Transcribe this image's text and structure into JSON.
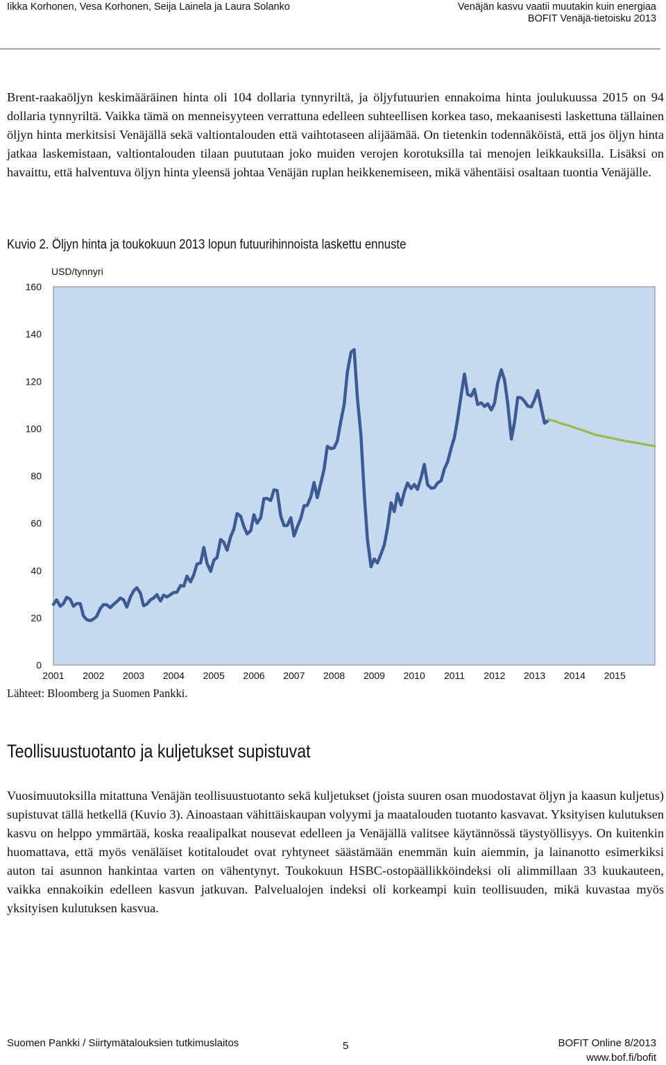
{
  "header": {
    "authors": "Iikka Korhonen, Vesa Korhonen, Seija Lainela ja Laura Solanko",
    "report_title": "Venäjän kasvu vaatii muutakin kuin energiaa",
    "series": "BOFIT Venäjä-tietoisku 2013"
  },
  "paragraphs": {
    "intro": "Brent-raakaöljyn keskimääräinen hinta oli 104 dollaria tynnyriltä, ja öljyfutuurien ennakoima hinta joulukuussa 2015 on 94 dollaria tynnyriltä. Vaikka tämä on menneisyyteen verrattuna edelleen suhteellisen korkea taso, mekaanisesti laskettuna tällainen öljyn hinta merkitsisi Venäjällä sekä valtiontalouden että vaihtotaseen alijäämää. On tietenkin todennäköistä, että jos öljyn hinta jatkaa laskemistaan, valtiontalouden tilaan puututaan joko muiden verojen korotuksilla tai menojen leikkauksilla. Lisäksi on havaittu, että halventuva öljyn hinta yleensä johtaa Venäjän ruplan heikkenemiseen, mikä vähentäisi osaltaan tuontia Venäjälle.",
    "industry": "Vuosimuutoksilla mitattuna Venäjän teollisuustuotanto sekä kuljetukset (joista suuren osan muodostavat öljyn ja kaasun kuljetus) supistuvat tällä hetkellä (Kuvio 3). Ainoastaan vähittäiskaupan volyymi ja maatalouden tuotanto kasvavat. Yksityisen kulutuksen kasvu on helppo ymmärtää, koska reaalipalkat nousevat edelleen ja Venäjällä valitsee käytännössä täystyöllisyys. On kuitenkin huomattava, että myös venäläiset kotitaloudet ovat ryhtyneet säästämään enemmän kuin aiemmin, ja lainanotto esimerkiksi auton tai asunnon hankintaa varten on vähentynyt. Toukokuun HSBC-ostopäällikköindeksi oli alimmillaan 33 kuukauteen, vaikka ennakoikin edelleen kasvun jatkuvan. Palvelualojen indeksi oli korkeampi kuin teollisuuden, mikä kuvastaa myös yksityisen kulutuksen kasvua."
  },
  "figure": {
    "title": "Kuvio 2. Öljyn hinta ja toukokuun 2013 lopun futuurihinnoista laskettu ennuste",
    "unit": "USD/tynnyri",
    "source": "Lähteet: Bloomberg ja Suomen Pankki."
  },
  "section": {
    "title": "Teollisuustuotanto ja kuljetukset supistuvat"
  },
  "footer": {
    "publisher": "Suomen Pankki / Siirtymätalouksien tutkimuslaitos",
    "page": "5",
    "edition": "BOFIT Online 8/2013",
    "url": "www.bof.fi/bofit"
  },
  "chart_data": {
    "type": "line",
    "title": "Kuvio 2. Öljyn hinta ja toukokuun 2013 lopun futuurihinnoista laskettu ennuste",
    "ylabel": "USD/tynnyri",
    "xlabel": "",
    "ylim": [
      0,
      160
    ],
    "yticks": [
      0,
      20,
      40,
      60,
      80,
      100,
      120,
      140,
      160
    ],
    "xlim": [
      2001.0,
      2016.0
    ],
    "xticks": [
      "2001",
      "2002",
      "2003",
      "2004",
      "2005",
      "2006",
      "2007",
      "2008",
      "2009",
      "2010",
      "2011",
      "2012",
      "2013",
      "2014",
      "2015"
    ],
    "background": "#c6d9f1",
    "series": [
      {
        "role": "actual",
        "color": "#3b5b92",
        "points": [
          [
            2001.0,
            25.7
          ],
          [
            2001.08,
            27.6
          ],
          [
            2001.17,
            24.9
          ],
          [
            2001.25,
            26.0
          ],
          [
            2001.33,
            28.7
          ],
          [
            2001.42,
            27.8
          ],
          [
            2001.5,
            24.9
          ],
          [
            2001.58,
            26.0
          ],
          [
            2001.67,
            26.0
          ],
          [
            2001.75,
            20.8
          ],
          [
            2001.83,
            19.2
          ],
          [
            2001.92,
            18.8
          ],
          [
            2002.0,
            19.5
          ],
          [
            2002.08,
            20.6
          ],
          [
            2002.17,
            24.0
          ],
          [
            2002.25,
            25.6
          ],
          [
            2002.33,
            25.5
          ],
          [
            2002.42,
            24.3
          ],
          [
            2002.5,
            25.7
          ],
          [
            2002.58,
            26.8
          ],
          [
            2002.67,
            28.4
          ],
          [
            2002.75,
            27.6
          ],
          [
            2002.83,
            24.5
          ],
          [
            2002.92,
            28.8
          ],
          [
            2003.0,
            31.4
          ],
          [
            2003.08,
            32.7
          ],
          [
            2003.17,
            30.4
          ],
          [
            2003.25,
            25.1
          ],
          [
            2003.33,
            25.8
          ],
          [
            2003.42,
            27.6
          ],
          [
            2003.5,
            28.4
          ],
          [
            2003.58,
            29.8
          ],
          [
            2003.67,
            27.1
          ],
          [
            2003.75,
            29.6
          ],
          [
            2003.83,
            28.8
          ],
          [
            2003.92,
            29.8
          ],
          [
            2004.0,
            30.7
          ],
          [
            2004.08,
            30.8
          ],
          [
            2004.17,
            33.6
          ],
          [
            2004.25,
            33.4
          ],
          [
            2004.33,
            37.6
          ],
          [
            2004.42,
            35.2
          ],
          [
            2004.5,
            38.2
          ],
          [
            2004.58,
            42.7
          ],
          [
            2004.67,
            43.2
          ],
          [
            2004.75,
            49.8
          ],
          [
            2004.83,
            43.1
          ],
          [
            2004.92,
            39.6
          ],
          [
            2005.0,
            44.3
          ],
          [
            2005.08,
            45.5
          ],
          [
            2005.17,
            53.1
          ],
          [
            2005.25,
            51.9
          ],
          [
            2005.33,
            48.6
          ],
          [
            2005.42,
            54.3
          ],
          [
            2005.5,
            57.5
          ],
          [
            2005.58,
            64.1
          ],
          [
            2005.67,
            62.9
          ],
          [
            2005.75,
            58.5
          ],
          [
            2005.83,
            55.5
          ],
          [
            2005.92,
            56.8
          ],
          [
            2006.0,
            63.6
          ],
          [
            2006.08,
            60.0
          ],
          [
            2006.17,
            62.3
          ],
          [
            2006.25,
            70.4
          ],
          [
            2006.33,
            70.5
          ],
          [
            2006.42,
            69.6
          ],
          [
            2006.5,
            74.1
          ],
          [
            2006.58,
            73.8
          ],
          [
            2006.67,
            63.0
          ],
          [
            2006.75,
            59.0
          ],
          [
            2006.83,
            59.0
          ],
          [
            2006.92,
            62.3
          ],
          [
            2007.0,
            54.6
          ],
          [
            2007.08,
            58.3
          ],
          [
            2007.17,
            62.1
          ],
          [
            2007.25,
            67.4
          ],
          [
            2007.33,
            67.5
          ],
          [
            2007.42,
            71.3
          ],
          [
            2007.5,
            77.2
          ],
          [
            2007.58,
            70.8
          ],
          [
            2007.67,
            77.1
          ],
          [
            2007.75,
            82.9
          ],
          [
            2007.83,
            92.5
          ],
          [
            2007.92,
            91.5
          ],
          [
            2008.0,
            91.9
          ],
          [
            2008.08,
            94.8
          ],
          [
            2008.17,
            103.3
          ],
          [
            2008.25,
            110.2
          ],
          [
            2008.33,
            123.9
          ],
          [
            2008.42,
            132.3
          ],
          [
            2008.5,
            133.4
          ],
          [
            2008.58,
            113.2
          ],
          [
            2008.67,
            97.1
          ],
          [
            2008.75,
            72.8
          ],
          [
            2008.83,
            53.2
          ],
          [
            2008.92,
            41.6
          ],
          [
            2009.0,
            44.9
          ],
          [
            2009.08,
            43.2
          ],
          [
            2009.17,
            47.0
          ],
          [
            2009.25,
            50.8
          ],
          [
            2009.33,
            57.9
          ],
          [
            2009.42,
            68.6
          ],
          [
            2009.5,
            64.9
          ],
          [
            2009.58,
            72.5
          ],
          [
            2009.67,
            67.7
          ],
          [
            2009.75,
            73.2
          ],
          [
            2009.83,
            77.0
          ],
          [
            2009.92,
            74.7
          ],
          [
            2010.0,
            76.4
          ],
          [
            2010.08,
            74.3
          ],
          [
            2010.17,
            79.3
          ],
          [
            2010.25,
            84.9
          ],
          [
            2010.33,
            76.3
          ],
          [
            2010.42,
            74.8
          ],
          [
            2010.5,
            75.0
          ],
          [
            2010.58,
            77.0
          ],
          [
            2010.67,
            78.0
          ],
          [
            2010.75,
            83.0
          ],
          [
            2010.83,
            85.9
          ],
          [
            2010.92,
            91.8
          ],
          [
            2011.0,
            96.3
          ],
          [
            2011.08,
            104.0
          ],
          [
            2011.17,
            114.4
          ],
          [
            2011.25,
            123.1
          ],
          [
            2011.33,
            114.5
          ],
          [
            2011.42,
            113.8
          ],
          [
            2011.5,
            116.6
          ],
          [
            2011.58,
            110.2
          ],
          [
            2011.67,
            110.9
          ],
          [
            2011.75,
            109.4
          ],
          [
            2011.83,
            110.5
          ],
          [
            2011.92,
            107.9
          ],
          [
            2012.0,
            110.7
          ],
          [
            2012.08,
            119.3
          ],
          [
            2012.17,
            124.9
          ],
          [
            2012.25,
            120.5
          ],
          [
            2012.33,
            110.5
          ],
          [
            2012.42,
            95.6
          ],
          [
            2012.5,
            102.8
          ],
          [
            2012.58,
            113.2
          ],
          [
            2012.67,
            113.0
          ],
          [
            2012.75,
            111.5
          ],
          [
            2012.83,
            109.5
          ],
          [
            2012.92,
            109.2
          ],
          [
            2013.0,
            112.3
          ],
          [
            2013.08,
            116.1
          ],
          [
            2013.17,
            108.5
          ],
          [
            2013.25,
            102.3
          ],
          [
            2013.33,
            103.3
          ]
        ]
      },
      {
        "role": "forecast",
        "color": "#9bbb59",
        "points": [
          [
            2013.33,
            103.9
          ],
          [
            2013.5,
            103.2
          ],
          [
            2013.67,
            102.1
          ],
          [
            2013.83,
            101.4
          ],
          [
            2014.0,
            100.4
          ],
          [
            2014.25,
            99.0
          ],
          [
            2014.5,
            97.5
          ],
          [
            2014.75,
            96.6
          ],
          [
            2015.0,
            95.7
          ],
          [
            2015.25,
            94.8
          ],
          [
            2015.5,
            94.1
          ],
          [
            2015.75,
            93.3
          ],
          [
            2016.0,
            92.6
          ]
        ]
      }
    ]
  }
}
